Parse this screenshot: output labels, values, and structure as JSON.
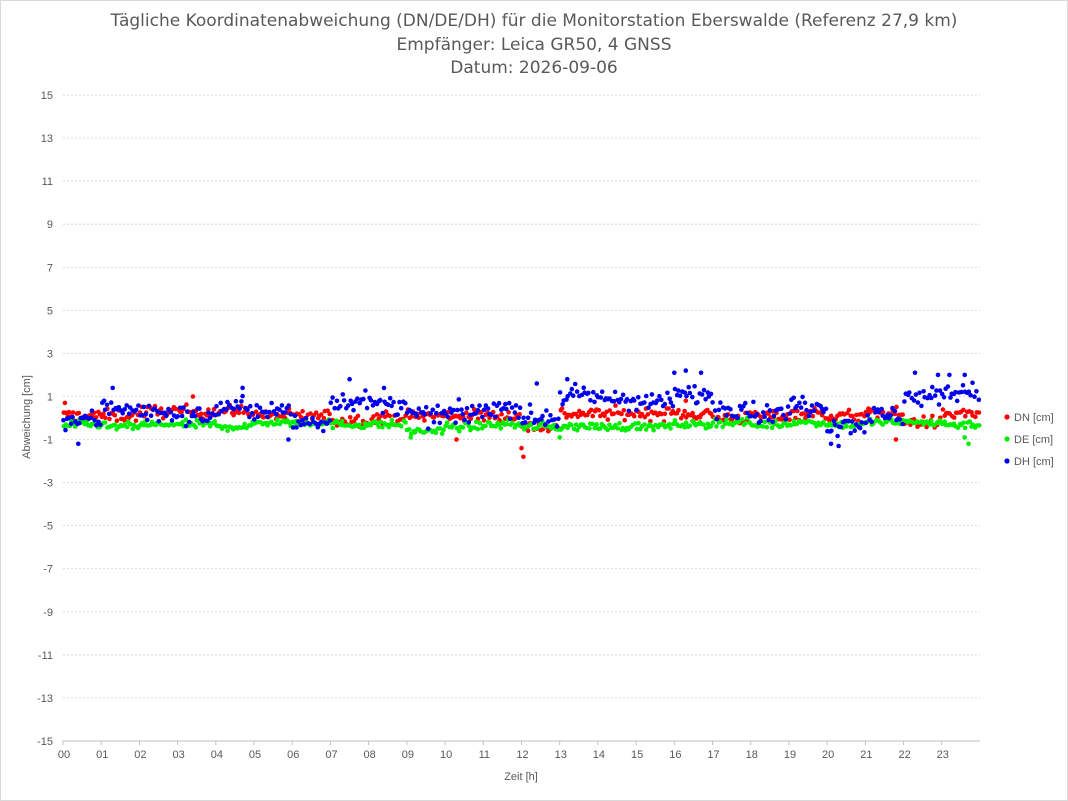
{
  "chart_data": {
    "type": "scatter",
    "title": "Tägliche Koordinatenabweichung (DN/DE/DH) für die Monitorstation Eberswalde (Referenz 27,9 km)",
    "subtitle1": "Empfänger: Leica GR50, 4 GNSS",
    "subtitle2": "Datum: 2026-09-06",
    "xlabel": "Zeit [h]",
    "ylabel": "Abweichung [cm]",
    "ylim": [
      -15,
      15
    ],
    "xlim": [
      0,
      24
    ],
    "yticks": [
      "15",
      "13",
      "11",
      "9",
      "7",
      "5",
      "3",
      "1",
      "-1",
      "-3",
      "-5",
      "-7",
      "-9",
      "-11",
      "-13",
      "-15"
    ],
    "xticks": [
      "00",
      "01",
      "02",
      "03",
      "04",
      "05",
      "06",
      "07",
      "08",
      "09",
      "10",
      "11",
      "12",
      "13",
      "14",
      "15",
      "16",
      "17",
      "18",
      "19",
      "20",
      "21",
      "22",
      "23"
    ],
    "grid": "horizontal dotted",
    "legend_position": "right",
    "samples_per_hour": 20,
    "series": [
      {
        "name": "DN [cm]",
        "color": "#ff0000",
        "hourly_mean": [
          0.1,
          0.1,
          0.3,
          0.3,
          0.3,
          0.1,
          0.1,
          -0.1,
          0.0,
          0.1,
          0.1,
          0.1,
          -0.4,
          0.2,
          0.2,
          0.2,
          0.2,
          0.0,
          0.1,
          0.2,
          0.1,
          0.2,
          -0.2,
          0.2
        ],
        "notable_points": [
          [
            0.05,
            0.7
          ],
          [
            3.4,
            1.0
          ],
          [
            12.0,
            -1.4
          ],
          [
            12.05,
            -1.8
          ],
          [
            10.3,
            -1.0
          ],
          [
            21.8,
            -1.0
          ],
          [
            16.3,
            0.8
          ]
        ]
      },
      {
        "name": "DE [cm]",
        "color": "#00ee00",
        "hourly_mean": [
          -0.3,
          -0.4,
          -0.3,
          -0.3,
          -0.4,
          -0.2,
          -0.2,
          -0.3,
          -0.3,
          -0.6,
          -0.4,
          -0.3,
          -0.4,
          -0.4,
          -0.4,
          -0.4,
          -0.3,
          -0.2,
          -0.3,
          -0.2,
          -0.3,
          -0.2,
          -0.2,
          -0.3
        ],
        "notable_points": [
          [
            23.7,
            -1.2
          ],
          [
            23.6,
            -0.9
          ],
          [
            9.1,
            -0.9
          ],
          [
            13.0,
            -0.9
          ]
        ]
      },
      {
        "name": "DH [cm]",
        "color": "#0000ee",
        "hourly_mean": [
          -0.1,
          0.5,
          0.2,
          0.1,
          0.5,
          0.3,
          -0.2,
          0.8,
          0.6,
          0.1,
          0.2,
          0.5,
          0.0,
          1.0,
          0.9,
          0.7,
          1.1,
          0.5,
          0.2,
          0.6,
          -0.3,
          0.1,
          1.0,
          1.2
        ],
        "notable_points": [
          [
            0.4,
            -1.2
          ],
          [
            1.3,
            1.4
          ],
          [
            4.7,
            1.4
          ],
          [
            5.9,
            -1.0
          ],
          [
            7.5,
            1.8
          ],
          [
            8.4,
            1.4
          ],
          [
            12.4,
            1.6
          ],
          [
            13.2,
            1.8
          ],
          [
            16.0,
            2.1
          ],
          [
            16.3,
            2.2
          ],
          [
            16.7,
            2.1
          ],
          [
            20.1,
            -1.2
          ],
          [
            20.3,
            -1.3
          ],
          [
            22.3,
            2.1
          ],
          [
            22.9,
            2.0
          ],
          [
            23.2,
            2.0
          ],
          [
            23.6,
            2.0
          ]
        ]
      }
    ]
  }
}
